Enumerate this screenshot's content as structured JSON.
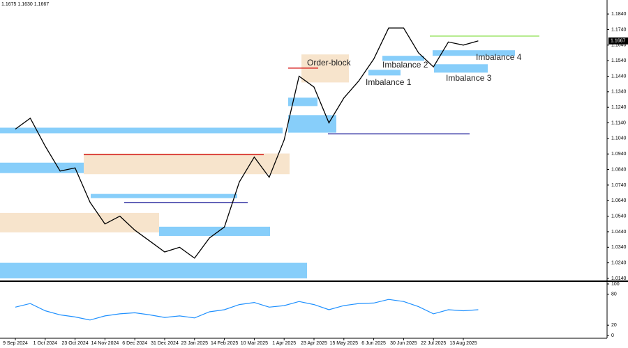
{
  "header": "1.1675 1.1630 1.1667",
  "chart_data": [
    {
      "type": "line",
      "current_price_label": "1.1667",
      "categories": [
        "9 Sep 2024",
        null,
        "1 Oct 2024",
        null,
        "23 Oct 2024",
        null,
        "14 Nov 2024",
        null,
        "6 Dec 2024",
        null,
        "31 Dec 2024",
        null,
        "23 Jan 2025",
        null,
        "14 Feb 2025",
        null,
        "10 Mar 2025",
        null,
        "1 Apr 2025",
        null,
        "23 Apr 2025",
        null,
        "15 May 2025",
        null,
        "6 Jun 2025",
        null,
        "30 Jun 2025",
        null,
        "22 Jul 2025",
        null,
        "13 Aug 2025",
        null
      ],
      "series": [
        {
          "color": "#000000",
          "values": [
            1.11,
            1.117,
            1.099,
            1.083,
            1.085,
            1.063,
            1.049,
            1.054,
            1.045,
            1.038,
            1.031,
            1.034,
            1.027,
            1.04,
            1.047,
            1.076,
            1.092,
            1.079,
            1.103,
            1.144,
            1.137,
            1.114,
            1.13,
            1.141,
            1.155,
            1.175,
            1.175,
            1.159,
            1.15,
            1.166,
            1.164,
            1.1667
          ]
        }
      ],
      "ylim": [
        1.0122,
        1.193
      ],
      "yticks": [
        {
          "value": 1.184,
          "label": "1.1840"
        },
        {
          "value": 1.174,
          "label": "1.1740"
        },
        {
          "value": 1.164,
          "label": "1.1640"
        },
        {
          "value": 1.154,
          "label": "1.1540"
        },
        {
          "value": 1.144,
          "label": "1.1440"
        },
        {
          "value": 1.134,
          "label": "1.1340"
        },
        {
          "value": 1.124,
          "label": "1.1240"
        },
        {
          "value": 1.114,
          "label": "1.1140"
        },
        {
          "value": 1.104,
          "label": "1.1040"
        },
        {
          "value": 1.094,
          "label": "1.0940"
        },
        {
          "value": 1.084,
          "label": "1.0840"
        },
        {
          "value": 1.074,
          "label": "1.0740"
        },
        {
          "value": 1.064,
          "label": "1.0640"
        },
        {
          "value": 1.054,
          "label": "1.0540"
        },
        {
          "value": 1.044,
          "label": "1.0440"
        },
        {
          "value": 1.034,
          "label": "1.0340"
        },
        {
          "value": 1.024,
          "label": "1.0240"
        },
        {
          "value": 1.014,
          "label": "1.0140"
        }
      ],
      "zones": [
        {
          "low": 1.014,
          "high": 1.024,
          "color": "#87cefa"
        },
        {
          "low": 1.1073,
          "high": 1.1109,
          "color": "#87cefa"
        },
        {
          "low": 1.0817,
          "high": 1.0884,
          "color": "#87cefa"
        },
        {
          "low": 1.081,
          "high": 1.0943,
          "color": "#f7e4cc"
        },
        {
          "low": 1.0436,
          "high": 1.0561,
          "color": "#f7e4cc"
        },
        {
          "low": 1.0413,
          "high": 1.0472,
          "color": "#87cefa"
        },
        {
          "low": 1.0656,
          "high": 1.0683,
          "color": "#87cefa"
        },
        {
          "low": 1.14,
          "high": 1.158,
          "color": "#f7e4cc"
        },
        {
          "low": 1.1539,
          "high": 1.1571,
          "color": "#87cefa"
        },
        {
          "low": 1.1445,
          "high": 1.1481,
          "color": "#87cefa"
        },
        {
          "low": 1.1571,
          "high": 1.1607,
          "color": "#87cefa"
        },
        {
          "low": 1.1463,
          "high": 1.1517,
          "color": "#87cefa"
        },
        {
          "low": 1.1248,
          "high": 1.1302,
          "color": "#87cefa"
        },
        {
          "low": 1.1077,
          "high": 1.119,
          "color": "#87cefa"
        }
      ],
      "levels": [
        {
          "value": 1.1069,
          "color": "#00008b"
        },
        {
          "value": 1.1698,
          "color": "#7fdc3a"
        },
        {
          "value": 1.0627,
          "color": "#00008b"
        },
        {
          "value": 1.0935,
          "color": "#d00000"
        },
        {
          "value": 1.1492,
          "color": "#d00000"
        }
      ],
      "annotations": [
        "Order-block",
        "Imbalance 2",
        "Imbalance 1",
        "Imbalance 4",
        "Imbalance 3"
      ]
    },
    {
      "type": "line",
      "series": [
        {
          "color": "#1e90ff",
          "values": [
            55,
            62,
            48,
            40,
            36,
            30,
            38,
            42,
            44,
            40,
            35,
            38,
            34,
            46,
            50,
            60,
            64,
            55,
            58,
            66,
            60,
            50,
            58,
            62,
            63,
            70,
            66,
            56,
            42,
            50,
            48,
            50
          ]
        }
      ],
      "ylim": [
        0,
        100
      ],
      "yticks": [
        100,
        80,
        20,
        0
      ]
    }
  ]
}
